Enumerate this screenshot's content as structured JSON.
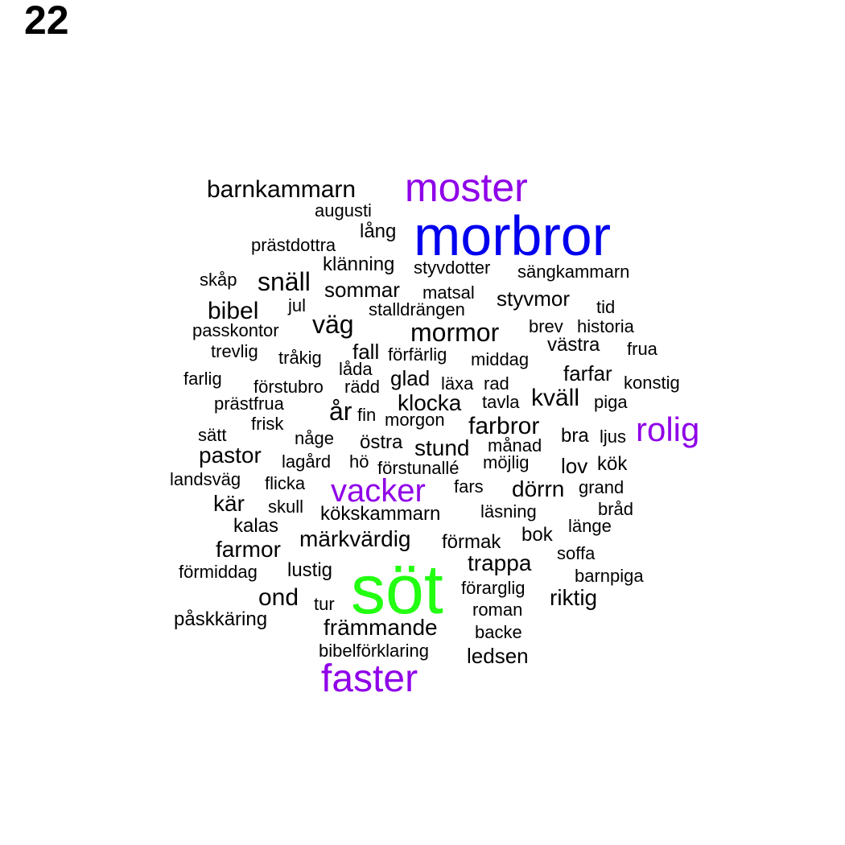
{
  "page_label": "22",
  "colors": {
    "black": "#000000",
    "blue": "#0000ee",
    "green": "#22ff11",
    "purple": "#8f00e8"
  },
  "words": [
    {
      "text": "morbror",
      "color": "blue"
    },
    {
      "text": "söt",
      "color": "green"
    },
    {
      "text": "moster",
      "color": "purple"
    },
    {
      "text": "faster",
      "color": "purple"
    },
    {
      "text": "vacker",
      "color": "purple"
    },
    {
      "text": "rolig",
      "color": "purple"
    },
    {
      "text": "barnkammarn",
      "color": "black"
    },
    {
      "text": "augusti",
      "color": "black"
    },
    {
      "text": "lång",
      "color": "black"
    },
    {
      "text": "prästdottra",
      "color": "black"
    },
    {
      "text": "klänning",
      "color": "black"
    },
    {
      "text": "styvdotter",
      "color": "black"
    },
    {
      "text": "sängkammarn",
      "color": "black"
    },
    {
      "text": "skåp",
      "color": "black"
    },
    {
      "text": "snäll",
      "color": "black"
    },
    {
      "text": "sommar",
      "color": "black"
    },
    {
      "text": "matsal",
      "color": "black"
    },
    {
      "text": "styvmor",
      "color": "black"
    },
    {
      "text": "bibel",
      "color": "black"
    },
    {
      "text": "jul",
      "color": "black"
    },
    {
      "text": "stalldrängen",
      "color": "black"
    },
    {
      "text": "tid",
      "color": "black"
    },
    {
      "text": "passkontor",
      "color": "black"
    },
    {
      "text": "väg",
      "color": "black"
    },
    {
      "text": "mormor",
      "color": "black"
    },
    {
      "text": "brev",
      "color": "black"
    },
    {
      "text": "historia",
      "color": "black"
    },
    {
      "text": "trevlig",
      "color": "black"
    },
    {
      "text": "tråkig",
      "color": "black"
    },
    {
      "text": "fall",
      "color": "black"
    },
    {
      "text": "förfärlig",
      "color": "black"
    },
    {
      "text": "middag",
      "color": "black"
    },
    {
      "text": "västra",
      "color": "black"
    },
    {
      "text": "frua",
      "color": "black"
    },
    {
      "text": "låda",
      "color": "black"
    },
    {
      "text": "farlig",
      "color": "black"
    },
    {
      "text": "förstubro",
      "color": "black"
    },
    {
      "text": "rädd",
      "color": "black"
    },
    {
      "text": "glad",
      "color": "black"
    },
    {
      "text": "läxa",
      "color": "black"
    },
    {
      "text": "rad",
      "color": "black"
    },
    {
      "text": "farfar",
      "color": "black"
    },
    {
      "text": "konstig",
      "color": "black"
    },
    {
      "text": "prästfrua",
      "color": "black"
    },
    {
      "text": "år",
      "color": "black"
    },
    {
      "text": "klocka",
      "color": "black"
    },
    {
      "text": "tavla",
      "color": "black"
    },
    {
      "text": "kväll",
      "color": "black"
    },
    {
      "text": "piga",
      "color": "black"
    },
    {
      "text": "fin",
      "color": "black"
    },
    {
      "text": "morgon",
      "color": "black"
    },
    {
      "text": "frisk",
      "color": "black"
    },
    {
      "text": "farbror",
      "color": "black"
    },
    {
      "text": "sätt",
      "color": "black"
    },
    {
      "text": "någe",
      "color": "black"
    },
    {
      "text": "östra",
      "color": "black"
    },
    {
      "text": "stund",
      "color": "black"
    },
    {
      "text": "månad",
      "color": "black"
    },
    {
      "text": "bra",
      "color": "black"
    },
    {
      "text": "ljus",
      "color": "black"
    },
    {
      "text": "pastor",
      "color": "black"
    },
    {
      "text": "lagård",
      "color": "black"
    },
    {
      "text": "hö",
      "color": "black"
    },
    {
      "text": "förstunallé",
      "color": "black"
    },
    {
      "text": "möjlig",
      "color": "black"
    },
    {
      "text": "lov",
      "color": "black"
    },
    {
      "text": "kök",
      "color": "black"
    },
    {
      "text": "landsväg",
      "color": "black"
    },
    {
      "text": "flicka",
      "color": "black"
    },
    {
      "text": "fars",
      "color": "black"
    },
    {
      "text": "dörrn",
      "color": "black"
    },
    {
      "text": "grand",
      "color": "black"
    },
    {
      "text": "kär",
      "color": "black"
    },
    {
      "text": "skull",
      "color": "black"
    },
    {
      "text": "kökskammarn",
      "color": "black"
    },
    {
      "text": "läsning",
      "color": "black"
    },
    {
      "text": "bråd",
      "color": "black"
    },
    {
      "text": "kalas",
      "color": "black"
    },
    {
      "text": "länge",
      "color": "black"
    },
    {
      "text": "bok",
      "color": "black"
    },
    {
      "text": "märkvärdig",
      "color": "black"
    },
    {
      "text": "förmak",
      "color": "black"
    },
    {
      "text": "farmor",
      "color": "black"
    },
    {
      "text": "soffa",
      "color": "black"
    },
    {
      "text": "trappa",
      "color": "black"
    },
    {
      "text": "förmiddag",
      "color": "black"
    },
    {
      "text": "lustig",
      "color": "black"
    },
    {
      "text": "barnpiga",
      "color": "black"
    },
    {
      "text": "förarglig",
      "color": "black"
    },
    {
      "text": "ond",
      "color": "black"
    },
    {
      "text": "tur",
      "color": "black"
    },
    {
      "text": "riktig",
      "color": "black"
    },
    {
      "text": "roman",
      "color": "black"
    },
    {
      "text": "påskkäring",
      "color": "black"
    },
    {
      "text": "främmande",
      "color": "black"
    },
    {
      "text": "backe",
      "color": "black"
    },
    {
      "text": "bibelförklaring",
      "color": "black"
    },
    {
      "text": "ledsen",
      "color": "black"
    }
  ]
}
